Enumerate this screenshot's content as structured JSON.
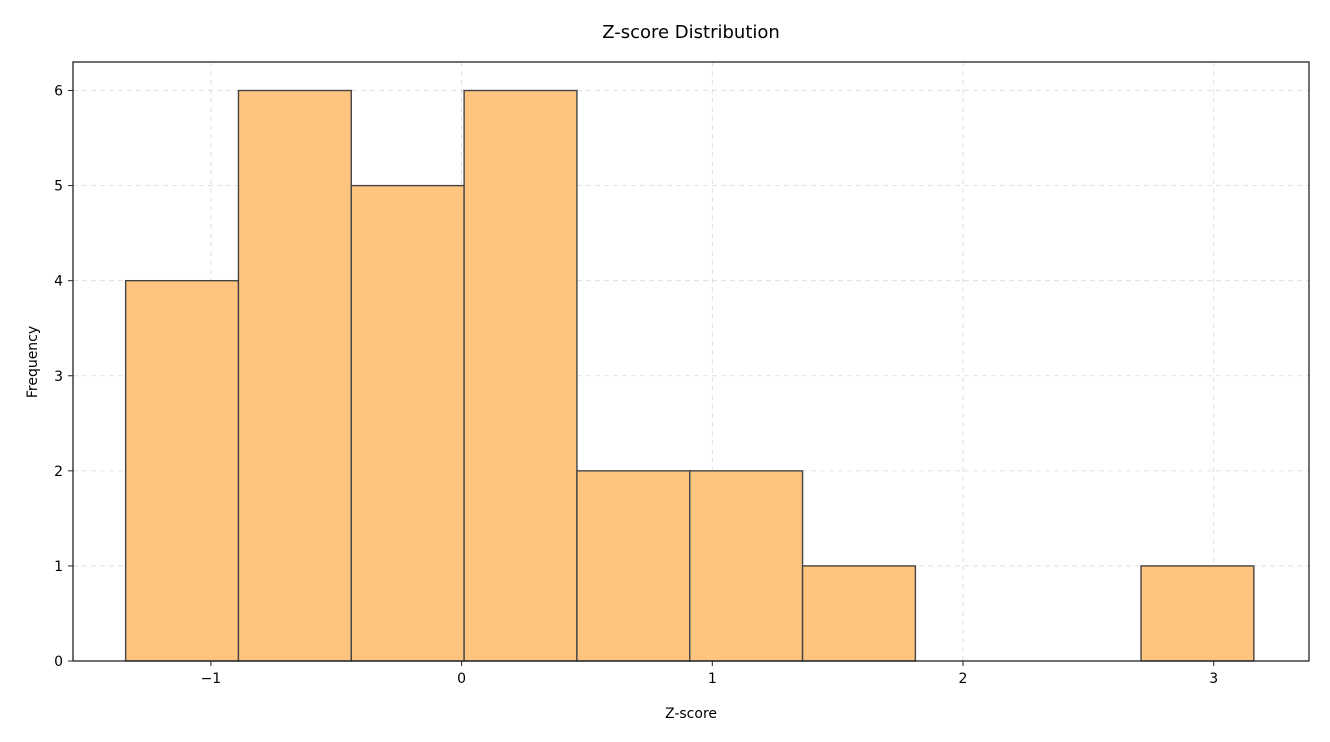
{
  "chart_data": {
    "type": "bar",
    "title": "Z-score Distribution",
    "xlabel": "Z-score",
    "ylabel": "Frequency",
    "xlim": [
      -1.55,
      3.38
    ],
    "ylim": [
      0,
      6.3
    ],
    "grid": true,
    "bar_color": "#ffc580",
    "edge_color": "#444444",
    "bins": [
      {
        "x0": -1.34,
        "x1": -0.89,
        "count": 4
      },
      {
        "x0": -0.89,
        "x1": -0.44,
        "count": 6
      },
      {
        "x0": -0.44,
        "x1": 0.01,
        "count": 5
      },
      {
        "x0": 0.01,
        "x1": 0.46,
        "count": 6
      },
      {
        "x0": 0.46,
        "x1": 0.91,
        "count": 2
      },
      {
        "x0": 0.91,
        "x1": 1.36,
        "count": 2
      },
      {
        "x0": 1.36,
        "x1": 1.81,
        "count": 1
      },
      {
        "x0": 1.81,
        "x1": 2.26,
        "count": 0
      },
      {
        "x0": 2.26,
        "x1": 2.71,
        "count": 0
      },
      {
        "x0": 2.71,
        "x1": 3.16,
        "count": 1
      }
    ],
    "x_ticks": [
      {
        "value": -1,
        "label": "−1"
      },
      {
        "value": 0,
        "label": "0"
      },
      {
        "value": 1,
        "label": "1"
      },
      {
        "value": 2,
        "label": "2"
      },
      {
        "value": 3,
        "label": "3"
      }
    ],
    "y_ticks": [
      {
        "value": 0,
        "label": "0"
      },
      {
        "value": 1,
        "label": "1"
      },
      {
        "value": 2,
        "label": "2"
      },
      {
        "value": 3,
        "label": "3"
      },
      {
        "value": 4,
        "label": "4"
      },
      {
        "value": 5,
        "label": "5"
      },
      {
        "value": 6,
        "label": "6"
      }
    ]
  }
}
